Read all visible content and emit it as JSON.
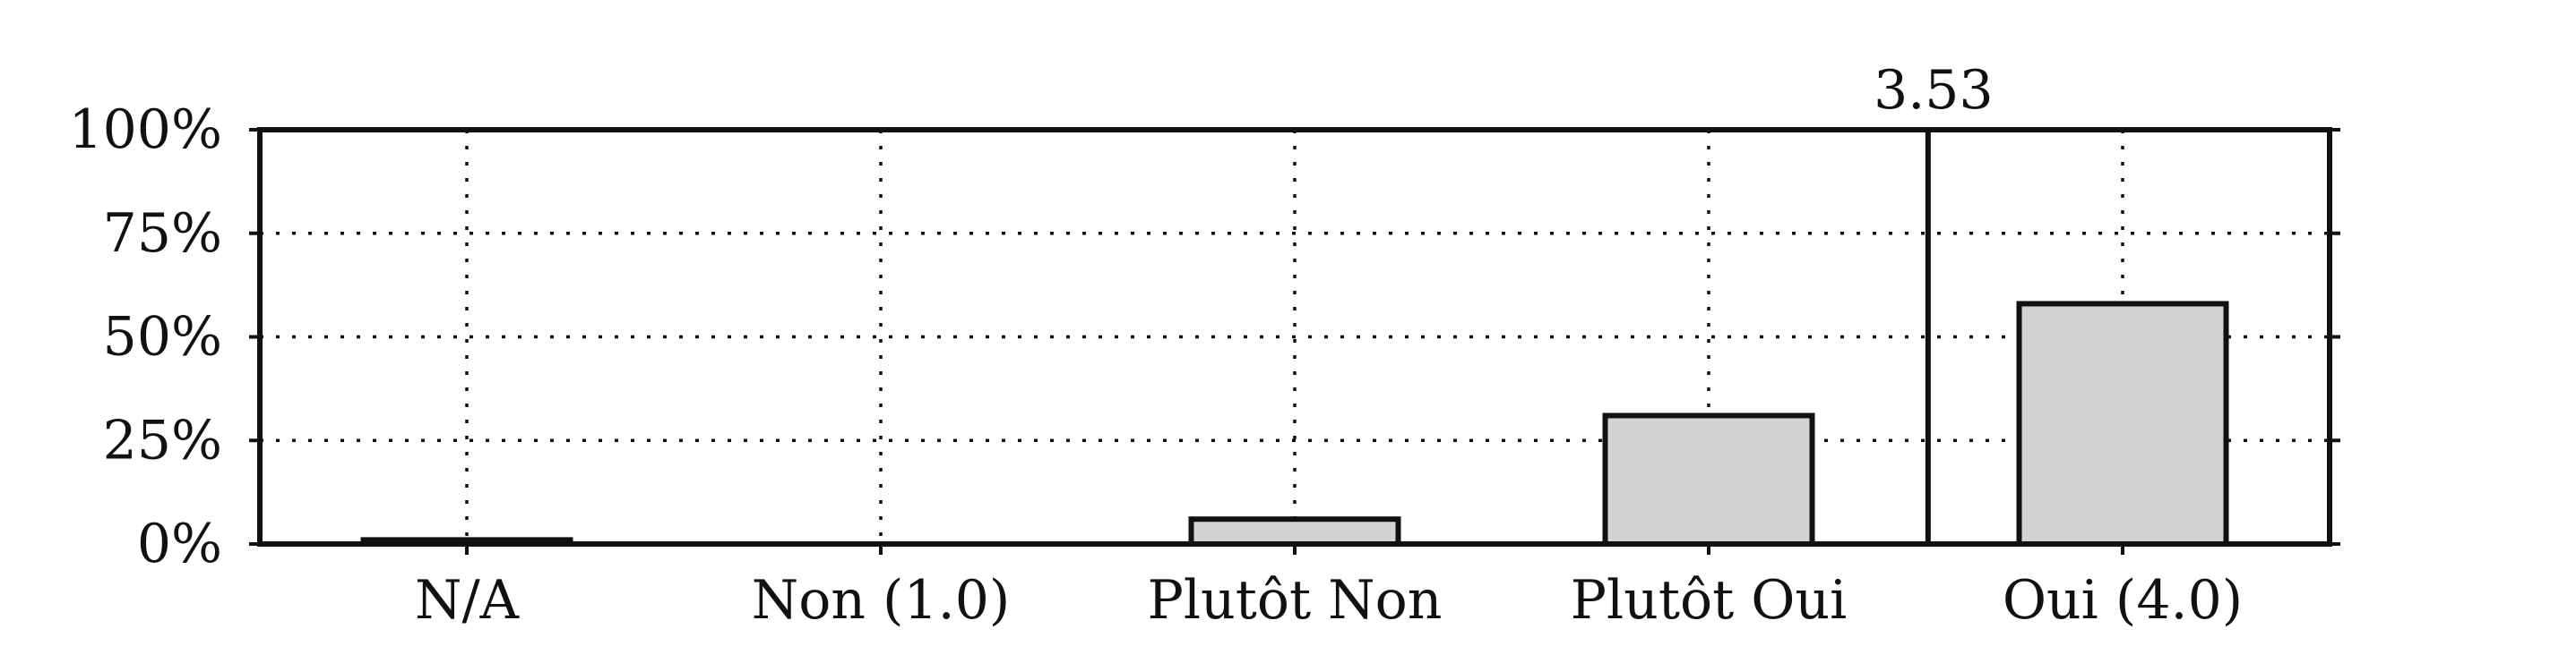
{
  "chart_data": {
    "type": "bar",
    "categories": [
      "N/A",
      "Non (1.0)",
      "Plutôt Non",
      "Plutôt Oui",
      "Oui (4.0)"
    ],
    "values": [
      1,
      0,
      6,
      31,
      58
    ],
    "value_unit": "%",
    "ylim": [
      0,
      100
    ],
    "yticks": [
      0,
      25,
      50,
      75,
      100
    ],
    "ytick_labels": [
      "0%",
      "25%",
      "50%",
      "75%",
      "100%"
    ],
    "title": "",
    "xlabel": "",
    "ylabel": "",
    "grid": true,
    "bar_color": "#d3d3d3",
    "mean": {
      "value": 3.53,
      "label": "3.53",
      "scale_min": 1.0,
      "scale_max": 4.0
    }
  }
}
